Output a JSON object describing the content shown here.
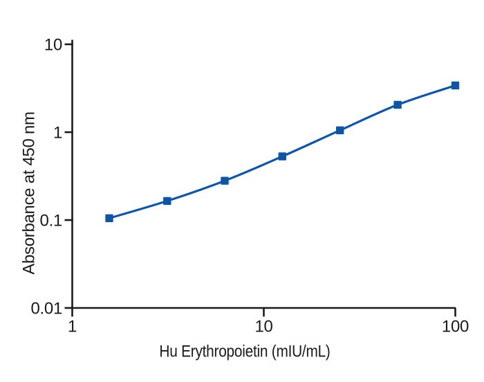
{
  "figure": {
    "background": "#ffffff"
  },
  "chart_data": {
    "type": "line",
    "title": "",
    "xlabel": "Hu Erythropoietin (mIU/mL)",
    "ylabel": "Absorbance at 450 nm",
    "x_scale": "log",
    "y_scale": "log",
    "xlim": [
      1,
      100
    ],
    "ylim": [
      0.01,
      10
    ],
    "x_ticks": [
      1,
      10,
      100
    ],
    "x_tick_labels": [
      "1",
      "10",
      "100"
    ],
    "y_ticks": [
      10,
      1,
      0.1,
      0.01
    ],
    "y_tick_labels": [
      "10",
      "1",
      "0.1",
      "0.01"
    ],
    "grid": false,
    "legend": false,
    "colors": {
      "series": "#0e56a5",
      "axis": "#1a1a1a",
      "background": "#ffffff"
    },
    "series": [
      {
        "marker": "square",
        "color": "#0e56a5",
        "x": [
          1.56,
          3.13,
          6.25,
          12.5,
          25,
          50,
          100
        ],
        "y": [
          0.105,
          0.165,
          0.28,
          0.53,
          1.05,
          2.05,
          3.4
        ]
      }
    ]
  }
}
